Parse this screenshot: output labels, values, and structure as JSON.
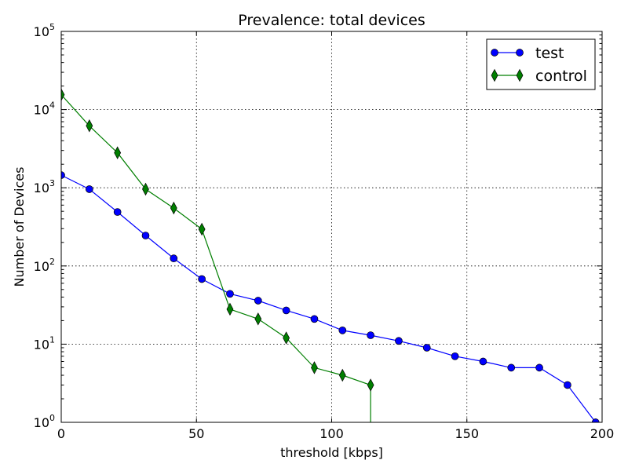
{
  "chart_data": {
    "type": "line",
    "title": "Prevalence: total devices",
    "xlabel": "threshold [kbps]",
    "ylabel": "Number of Devices",
    "xlim": [
      0,
      200
    ],
    "ylim": [
      1,
      100000
    ],
    "yscale": "log",
    "grid": true,
    "legend_position": "top-right",
    "x_ticks": [
      "0",
      "50",
      "100",
      "150",
      "200"
    ],
    "y_ticks": [
      {
        "base": "10",
        "exp": "0"
      },
      {
        "base": "10",
        "exp": "1"
      },
      {
        "base": "10",
        "exp": "2"
      },
      {
        "base": "10",
        "exp": "3"
      },
      {
        "base": "10",
        "exp": "4"
      },
      {
        "base": "10",
        "exp": "5"
      }
    ],
    "series": [
      {
        "name": "test",
        "color": "#0000ff",
        "marker": "circle",
        "x": [
          0,
          10.4,
          20.8,
          31.2,
          41.6,
          52.0,
          62.4,
          72.8,
          83.2,
          93.6,
          104.0,
          114.4,
          124.8,
          135.2,
          145.6,
          156.0,
          166.4,
          176.8,
          187.2,
          197.6
        ],
        "y": [
          1450,
          960,
          490,
          245,
          125,
          68,
          44,
          36,
          27,
          21,
          15,
          13,
          11,
          9,
          7,
          6,
          5,
          5,
          3,
          1
        ]
      },
      {
        "name": "control",
        "color": "#007f00",
        "marker": "diamond",
        "x": [
          0,
          10.4,
          20.8,
          31.2,
          41.6,
          52.0,
          62.4,
          72.8,
          83.2,
          93.6,
          104.0,
          114.4
        ],
        "y": [
          15500,
          6200,
          2800,
          960,
          550,
          295,
          28,
          21,
          12,
          5,
          4,
          3
        ]
      }
    ]
  }
}
